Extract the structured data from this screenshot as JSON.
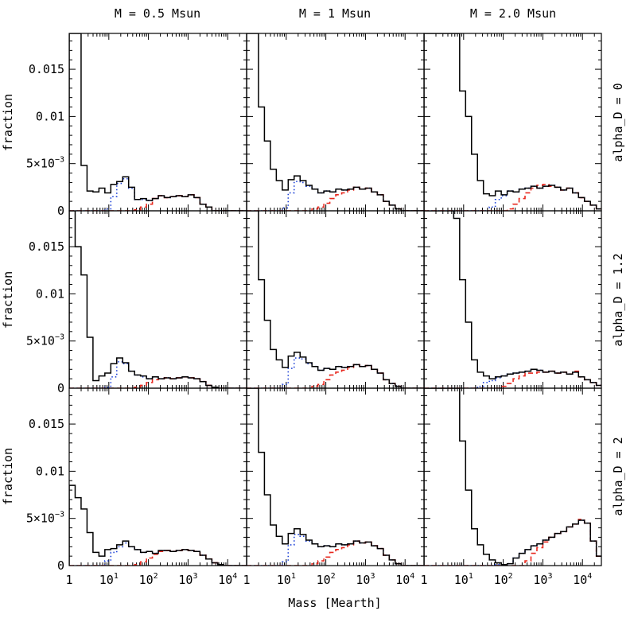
{
  "chart_data": {
    "type": "line",
    "layout": "3x3 grid of step histograms",
    "column_titles": [
      "M = 0.5 Msun",
      "M = 1 Msun",
      "M = 2.0 Msun"
    ],
    "row_labels": [
      "alpha_D = 0",
      "alpha_D = 1.2",
      "alpha_D = 2"
    ],
    "xlabel": "Mass [Mearth]",
    "ylabel": "fraction",
    "xscale": "log",
    "xlim": [
      1,
      30000
    ],
    "ylim": [
      0,
      0.0188
    ],
    "x_ticks": [
      {
        "value": 1,
        "label": "1"
      },
      {
        "value": 10,
        "label": "10",
        "sup": "1"
      },
      {
        "value": 100,
        "label": "10",
        "sup": "2"
      },
      {
        "value": 1000,
        "label": "10",
        "sup": "3"
      },
      {
        "value": 10000,
        "label": "10",
        "sup": "4"
      }
    ],
    "y_ticks": [
      {
        "value": 0,
        "label": "0"
      },
      {
        "value": 0.005,
        "label": "5×10",
        "sup": "−3"
      },
      {
        "value": 0.01,
        "label": "0.01"
      },
      {
        "value": 0.015,
        "label": "0.015"
      }
    ],
    "series_styles": [
      {
        "key": "total",
        "color": "#000000",
        "dash": ""
      },
      {
        "key": "dotted",
        "color": "#1a3fd6",
        "dash": "1.5 3"
      },
      {
        "key": "dashed",
        "color": "#e8281e",
        "dash": "6 4"
      }
    ],
    "bin_edges_log10": [
      0.0,
      0.15,
      0.3,
      0.45,
      0.6,
      0.75,
      0.9,
      1.05,
      1.2,
      1.35,
      1.5,
      1.65,
      1.8,
      1.95,
      2.1,
      2.25,
      2.4,
      2.55,
      2.7,
      2.85,
      3.0,
      3.15,
      3.3,
      3.45,
      3.6,
      3.75,
      3.9,
      4.05,
      4.2,
      4.35,
      4.5
    ],
    "panels": [
      {
        "row": 0,
        "col": 0,
        "series": {
          "total": [
            0.0188,
            0.0188,
            0.0048,
            0.0021,
            0.002,
            0.0024,
            0.0019,
            0.0028,
            0.0031,
            0.0036,
            0.0025,
            0.0012,
            0.0013,
            0.0011,
            0.0013,
            0.0016,
            0.0014,
            0.0015,
            0.0016,
            0.0015,
            0.0017,
            0.0014,
            0.0007,
            0.0004,
            0,
            0,
            0,
            0,
            0,
            0
          ],
          "dotted": [
            0,
            0,
            0,
            0,
            0,
            0,
            0.0002,
            0.0015,
            0.0029,
            0.0034,
            0.0024,
            0.0012,
            0.0012,
            0.0011,
            0.0013,
            0.0016,
            0.0014,
            0.0015,
            0.0016,
            0.0015,
            0.0017,
            0.0014,
            0.0007,
            0.0004,
            0,
            0,
            0,
            0,
            0,
            0
          ],
          "dashed": [
            0,
            0,
            0,
            0,
            0,
            0,
            0,
            0,
            0,
            0,
            0,
            0.0001,
            0.0004,
            0.0007,
            0.0013,
            0.0016,
            0.0014,
            0.0015,
            0.0016,
            0.0015,
            0.0017,
            0.0014,
            0.0007,
            0.0004,
            0,
            0,
            0,
            0,
            0,
            0
          ]
        }
      },
      {
        "row": 0,
        "col": 1,
        "series": {
          "total": [
            0.0188,
            0.0188,
            0.011,
            0.0074,
            0.0044,
            0.0032,
            0.0022,
            0.0033,
            0.0037,
            0.0032,
            0.0027,
            0.0023,
            0.0019,
            0.0021,
            0.002,
            0.0023,
            0.0022,
            0.0023,
            0.0025,
            0.0023,
            0.0024,
            0.002,
            0.0017,
            0.001,
            0.0006,
            0.0002,
            0,
            0,
            0,
            0
          ],
          "dotted": [
            0,
            0,
            0,
            0,
            0,
            0,
            0.0003,
            0.0019,
            0.0031,
            0.003,
            0.0026,
            0.0023,
            0.0019,
            0.0021,
            0.002,
            0.0023,
            0.0022,
            0.0023,
            0.0025,
            0.0023,
            0.0024,
            0.002,
            0.0017,
            0.001,
            0.0006,
            0.0002,
            0,
            0,
            0,
            0
          ],
          "dashed": [
            0,
            0,
            0,
            0,
            0,
            0,
            0,
            0,
            0,
            0,
            0,
            0.0002,
            0.0004,
            0.0008,
            0.0013,
            0.0017,
            0.0019,
            0.0022,
            0.0025,
            0.0023,
            0.0024,
            0.002,
            0.0017,
            0.001,
            0.0006,
            0.0002,
            0,
            0,
            0,
            0
          ]
        }
      },
      {
        "row": 0,
        "col": 2,
        "series": {
          "total": [
            0.0188,
            0.0188,
            0.0188,
            0.0188,
            0.0188,
            0.0188,
            0.0127,
            0.01,
            0.006,
            0.0032,
            0.0018,
            0.0016,
            0.0021,
            0.0017,
            0.0021,
            0.002,
            0.0023,
            0.0024,
            0.0026,
            0.0024,
            0.0026,
            0.0027,
            0.0025,
            0.0022,
            0.0024,
            0.0019,
            0.0014,
            0.001,
            0.0006,
            0.0002
          ],
          "dotted": [
            0,
            0,
            0,
            0,
            0,
            0,
            0,
            0,
            0,
            0,
            0,
            0.0004,
            0.0012,
            0.0016,
            0.0021,
            0.002,
            0.0023,
            0.0024,
            0.0026,
            0.0024,
            0.0026,
            0.0027,
            0.0025,
            0.0022,
            0.0024,
            0.0019,
            0.0014,
            0.001,
            0.0006,
            0.0002
          ],
          "dashed": [
            0,
            0,
            0,
            0,
            0,
            0,
            0,
            0,
            0,
            0,
            0,
            0,
            0,
            0,
            0.0002,
            0.0007,
            0.0013,
            0.0019,
            0.0024,
            0.0027,
            0.0028,
            0.0026,
            0.0025,
            0.0022,
            0.0024,
            0.0019,
            0.0014,
            0.001,
            0.0006,
            0.0002
          ]
        }
      },
      {
        "row": 1,
        "col": 0,
        "series": {
          "total": [
            0.0188,
            0.015,
            0.012,
            0.0054,
            0.0008,
            0.0013,
            0.0016,
            0.0026,
            0.0032,
            0.0027,
            0.0018,
            0.0014,
            0.0013,
            0.001,
            0.0012,
            0.001,
            0.0011,
            0.001,
            0.0011,
            0.0012,
            0.0011,
            0.001,
            0.0007,
            0.0003,
            0.0001,
            0,
            0,
            0,
            0,
            0
          ],
          "dotted": [
            0,
            0,
            0,
            0,
            0,
            0,
            0.0001,
            0.0012,
            0.0028,
            0.0026,
            0.0018,
            0.0014,
            0.0012,
            0.001,
            0.0012,
            0.001,
            0.0011,
            0.001,
            0.0011,
            0.0012,
            0.0011,
            0.001,
            0.0007,
            0.0003,
            0.0001,
            0,
            0,
            0,
            0,
            0
          ],
          "dashed": [
            0,
            0,
            0,
            0,
            0,
            0,
            0,
            0,
            0,
            0,
            0,
            0.0001,
            0.0003,
            0.0006,
            0.0009,
            0.001,
            0.0011,
            0.001,
            0.0011,
            0.0012,
            0.0011,
            0.001,
            0.0007,
            0.0003,
            0.0001,
            0,
            0,
            0,
            0,
            0
          ]
        }
      },
      {
        "row": 1,
        "col": 1,
        "series": {
          "total": [
            0.0188,
            0.0188,
            0.0115,
            0.0072,
            0.0041,
            0.003,
            0.0022,
            0.0034,
            0.0038,
            0.0033,
            0.0027,
            0.0023,
            0.0019,
            0.0021,
            0.002,
            0.0023,
            0.0022,
            0.0023,
            0.0025,
            0.0023,
            0.0024,
            0.002,
            0.0016,
            0.0009,
            0.0005,
            0.0002,
            0,
            0,
            0,
            0
          ],
          "dotted": [
            0,
            0,
            0,
            0,
            0,
            0,
            0.0004,
            0.0021,
            0.0032,
            0.0031,
            0.0026,
            0.0023,
            0.0019,
            0.0021,
            0.002,
            0.0023,
            0.0022,
            0.0023,
            0.0025,
            0.0023,
            0.0024,
            0.002,
            0.0016,
            0.0009,
            0.0005,
            0.0002,
            0,
            0,
            0,
            0
          ],
          "dashed": [
            0,
            0,
            0,
            0,
            0,
            0,
            0,
            0,
            0,
            0,
            0,
            0.0002,
            0.0004,
            0.0009,
            0.0014,
            0.0017,
            0.0019,
            0.0022,
            0.0025,
            0.0023,
            0.0024,
            0.002,
            0.0016,
            0.0009,
            0.0005,
            0.0002,
            0,
            0,
            0,
            0
          ]
        }
      },
      {
        "row": 1,
        "col": 2,
        "series": {
          "total": [
            0.0188,
            0.0188,
            0.0188,
            0.0188,
            0.0188,
            0.018,
            0.0115,
            0.007,
            0.003,
            0.0017,
            0.0013,
            0.001,
            0.0012,
            0.0013,
            0.0015,
            0.0016,
            0.0017,
            0.0018,
            0.002,
            0.0019,
            0.0017,
            0.0018,
            0.0016,
            0.0017,
            0.0015,
            0.0017,
            0.0012,
            0.0009,
            0.0006,
            0.0003
          ],
          "dotted": [
            0,
            0,
            0,
            0,
            0,
            0,
            0,
            0,
            0,
            0.0002,
            0.0006,
            0.0008,
            0.0011,
            0.0013,
            0.0015,
            0.0016,
            0.0017,
            0.0018,
            0.002,
            0.0019,
            0.0017,
            0.0018,
            0.0016,
            0.0017,
            0.0015,
            0.0017,
            0.0012,
            0.0009,
            0.0006,
            0.0003
          ],
          "dashed": [
            0,
            0,
            0,
            0,
            0,
            0,
            0,
            0,
            0,
            0,
            0,
            0,
            0,
            0.0002,
            0.0005,
            0.001,
            0.0013,
            0.0016,
            0.0016,
            0.0017,
            0.0017,
            0.0018,
            0.0016,
            0.0017,
            0.0015,
            0.0018,
            0.0012,
            0.0009,
            0.0006,
            0.0003
          ]
        }
      },
      {
        "row": 2,
        "col": 0,
        "series": {
          "total": [
            0.0085,
            0.0072,
            0.006,
            0.0035,
            0.0014,
            0.001,
            0.0017,
            0.0018,
            0.0022,
            0.0026,
            0.002,
            0.0017,
            0.0014,
            0.0015,
            0.0013,
            0.0016,
            0.0016,
            0.0015,
            0.0016,
            0.0017,
            0.0016,
            0.0015,
            0.0011,
            0.0007,
            0.0003,
            0.0001,
            0,
            0,
            0,
            0
          ],
          "dotted": [
            0,
            0,
            0,
            0,
            0,
            0,
            0.0005,
            0.0014,
            0.002,
            0.0024,
            0.002,
            0.0017,
            0.0014,
            0.0015,
            0.0013,
            0.0016,
            0.0016,
            0.0015,
            0.0016,
            0.0017,
            0.0016,
            0.0015,
            0.0011,
            0.0007,
            0.0003,
            0.0001,
            0,
            0,
            0,
            0
          ],
          "dashed": [
            0,
            0,
            0,
            0,
            0,
            0,
            0,
            0,
            0,
            0,
            0,
            0.0001,
            0.0004,
            0.0008,
            0.0012,
            0.0015,
            0.0016,
            0.0015,
            0.0016,
            0.0017,
            0.0016,
            0.0015,
            0.0011,
            0.0007,
            0.0003,
            0.0001,
            0,
            0,
            0,
            0
          ]
        }
      },
      {
        "row": 2,
        "col": 1,
        "series": {
          "total": [
            0.0188,
            0.0188,
            0.012,
            0.0075,
            0.0043,
            0.0031,
            0.0023,
            0.0034,
            0.0039,
            0.0033,
            0.0027,
            0.0023,
            0.002,
            0.0021,
            0.002,
            0.0023,
            0.0022,
            0.0023,
            0.0026,
            0.0024,
            0.0025,
            0.0021,
            0.0018,
            0.0011,
            0.0006,
            0.0002,
            0,
            0,
            0,
            0
          ],
          "dotted": [
            0,
            0,
            0,
            0,
            0,
            0,
            0.0004,
            0.0022,
            0.0033,
            0.0031,
            0.0026,
            0.0023,
            0.002,
            0.0021,
            0.002,
            0.0023,
            0.0022,
            0.0023,
            0.0026,
            0.0024,
            0.0025,
            0.0021,
            0.0018,
            0.0011,
            0.0006,
            0.0002,
            0,
            0,
            0,
            0
          ],
          "dashed": [
            0,
            0,
            0,
            0,
            0,
            0,
            0,
            0,
            0,
            0,
            0,
            0.0002,
            0.0005,
            0.0009,
            0.0014,
            0.0017,
            0.0019,
            0.0022,
            0.0026,
            0.0024,
            0.0025,
            0.0021,
            0.0018,
            0.0011,
            0.0006,
            0.0002,
            0,
            0,
            0,
            0
          ]
        }
      },
      {
        "row": 2,
        "col": 2,
        "series": {
          "total": [
            0.0188,
            0.0188,
            0.0188,
            0.0188,
            0.0188,
            0.0188,
            0.0132,
            0.008,
            0.0039,
            0.0022,
            0.0012,
            0.0006,
            0.0003,
            0.0001,
            0.0002,
            0.0008,
            0.0013,
            0.0017,
            0.0021,
            0.0023,
            0.0027,
            0.003,
            0.0034,
            0.0036,
            0.0041,
            0.0044,
            0.0048,
            0.0045,
            0.0026,
            0.001
          ],
          "dotted": [
            0,
            0,
            0,
            0,
            0,
            0,
            0,
            0,
            0,
            0,
            0,
            0,
            0.0001,
            0.0001,
            0.0002,
            0.0008,
            0.0013,
            0.0017,
            0.0021,
            0.0023,
            0.0027,
            0.003,
            0.0034,
            0.0036,
            0.0041,
            0.0044,
            0.0048,
            0.0045,
            0.0026,
            0.001
          ],
          "dashed": [
            0,
            0,
            0,
            0,
            0,
            0,
            0,
            0,
            0,
            0,
            0,
            0,
            0,
            0,
            0,
            0,
            0,
            0.0005,
            0.0013,
            0.0019,
            0.0025,
            0.003,
            0.0034,
            0.0036,
            0.0041,
            0.0044,
            0.0049,
            0.0045,
            0.0026,
            0.001
          ]
        }
      }
    ]
  }
}
